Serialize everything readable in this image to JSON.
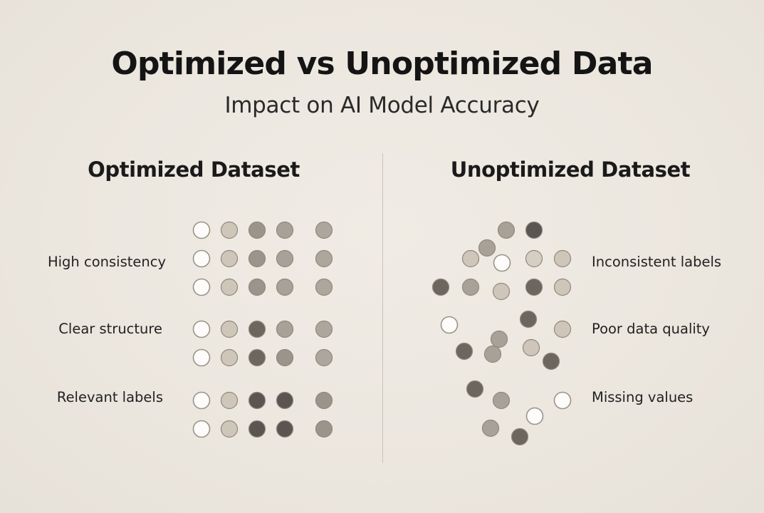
{
  "title": "Optimized vs Unoptimized Data",
  "subtitle": "Impact on AI Model Accuracy",
  "optimized": {
    "heading": "Optimized Dataset",
    "labels": [
      "High consistency",
      "Clear structure",
      "Relevant labels"
    ]
  },
  "unoptimized": {
    "heading": "Unoptimized Dataset",
    "labels": [
      "Inconsistent labels",
      "Poor data quality",
      "Missing values"
    ]
  },
  "colors": {
    "white": "#fdfcfa",
    "pale": "#cdc6b9",
    "light": "#a7a197",
    "mid": "#9a948b",
    "dark": "#6c665f",
    "darkest": "#5a5550",
    "stroke": "#8f887d"
  },
  "optimized_grid": {
    "rows": [
      [
        "white",
        "pale",
        "mid",
        "light",
        "light-alt"
      ],
      [
        "white",
        "pale",
        "mid",
        "light",
        "light-alt"
      ],
      [
        "white",
        "pale",
        "mid",
        "light",
        "light-alt"
      ],
      [
        "white",
        "pale",
        "dark",
        "light",
        "light-alt"
      ],
      [
        "white",
        "pale",
        "dark",
        "mid",
        "light-alt"
      ],
      [
        "white",
        "pale",
        "darkest",
        "darkest",
        "mid"
      ],
      [
        "white",
        "pale",
        "darkest",
        "darkest",
        "mid"
      ]
    ]
  }
}
